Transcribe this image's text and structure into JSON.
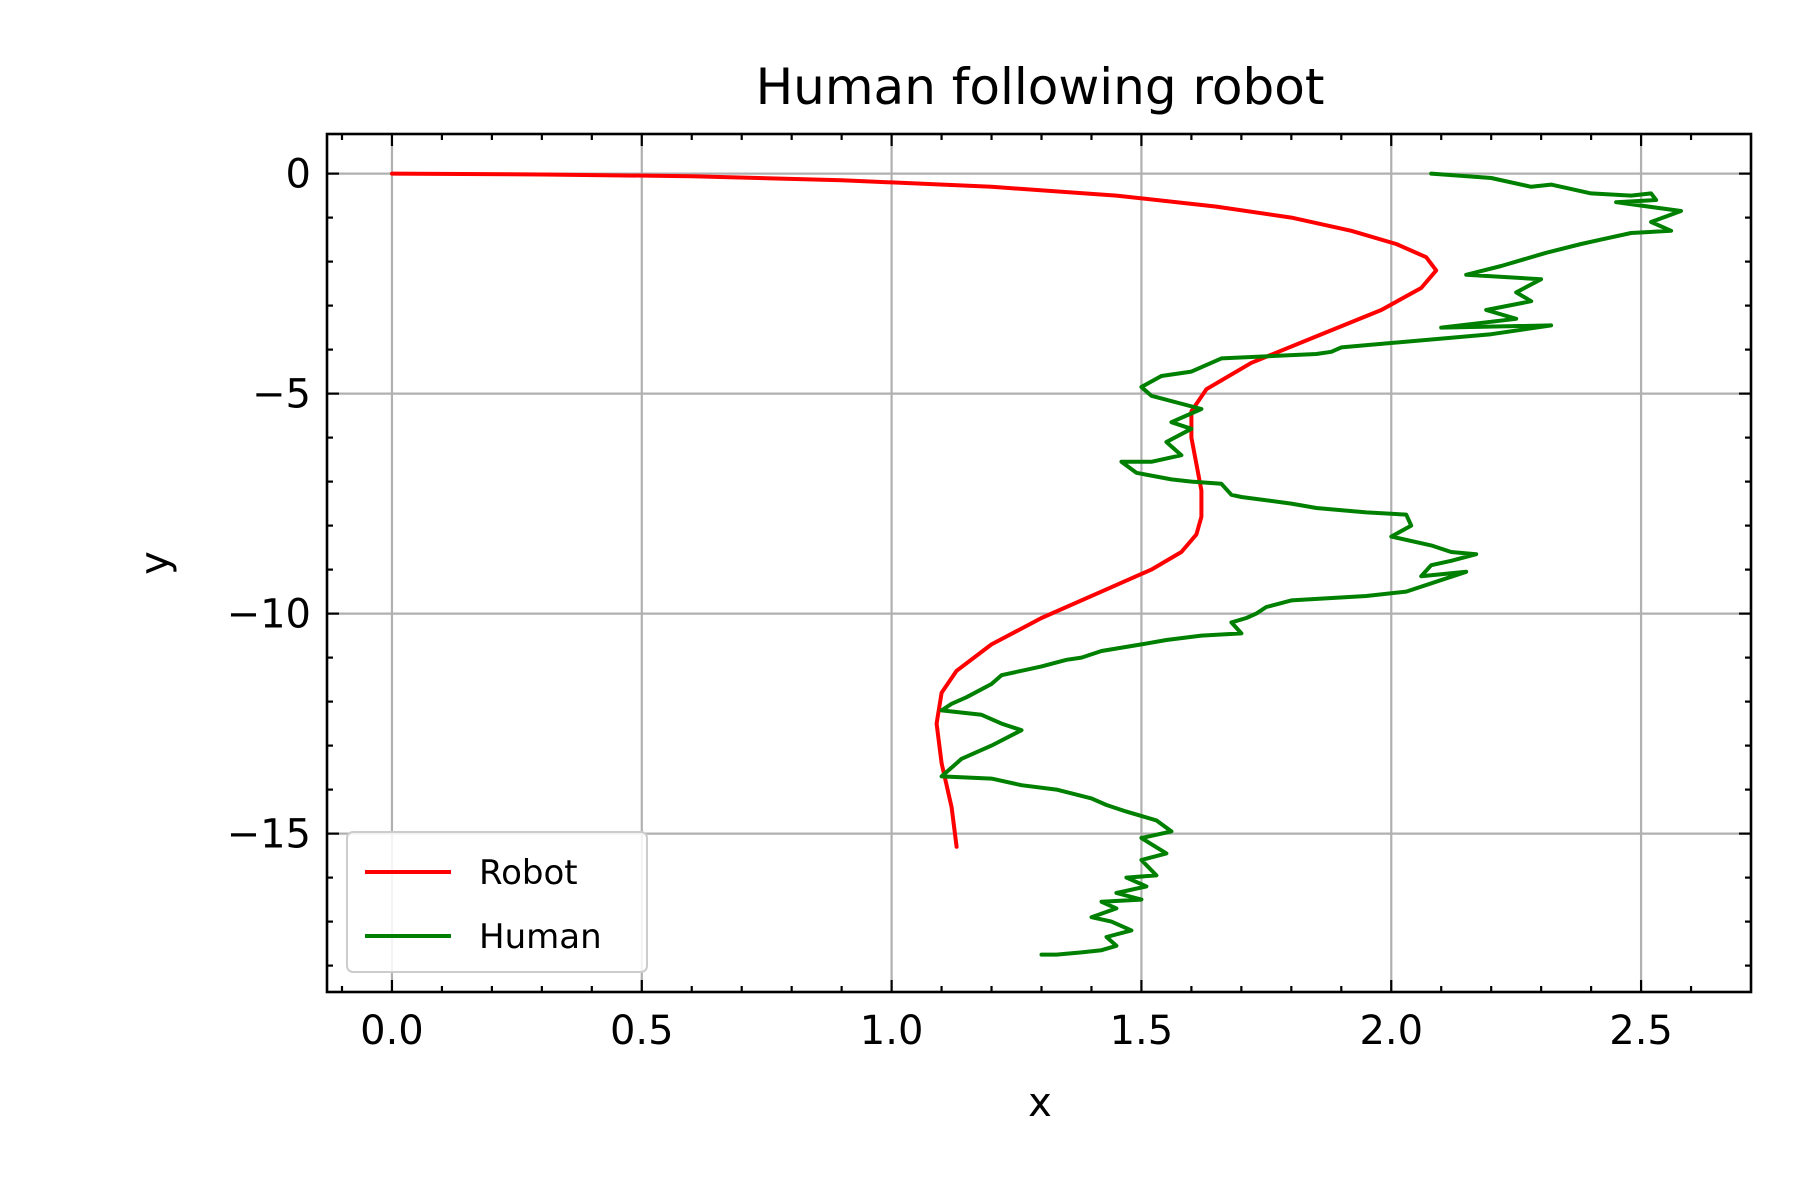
{
  "chart_data": {
    "type": "line",
    "title": "Human following robot",
    "xlabel": "x",
    "ylabel": "y",
    "xlim": [
      -0.13,
      2.72
    ],
    "ylim": [
      -18.6,
      0.9
    ],
    "grid": true,
    "legend_position": "lower-left",
    "x_ticks": [
      {
        "value": 0.0,
        "label": "0.0"
      },
      {
        "value": 0.5,
        "label": "0.5"
      },
      {
        "value": 1.0,
        "label": "1.0"
      },
      {
        "value": 1.5,
        "label": "1.5"
      },
      {
        "value": 2.0,
        "label": "2.0"
      },
      {
        "value": 2.5,
        "label": "2.5"
      }
    ],
    "y_ticks": [
      {
        "value": 0,
        "label": "0"
      },
      {
        "value": -5,
        "label": "−5"
      },
      {
        "value": -10,
        "label": "−10"
      },
      {
        "value": -15,
        "label": "−15"
      }
    ],
    "series": [
      {
        "name": "Robot",
        "color": "#ff0000",
        "x": [
          0.0,
          0.3,
          0.6,
          0.9,
          1.2,
          1.45,
          1.65,
          1.8,
          1.92,
          2.01,
          2.07,
          2.09,
          2.06,
          1.98,
          1.85,
          1.72,
          1.63,
          1.6,
          1.6,
          1.61,
          1.62,
          1.62,
          1.61,
          1.58,
          1.52,
          1.42,
          1.3,
          1.2,
          1.13,
          1.1,
          1.09,
          1.1,
          1.12,
          1.13
        ],
        "y": [
          0.0,
          -0.02,
          -0.06,
          -0.15,
          -0.3,
          -0.5,
          -0.75,
          -1.0,
          -1.3,
          -1.6,
          -1.9,
          -2.2,
          -2.6,
          -3.1,
          -3.7,
          -4.3,
          -4.9,
          -5.4,
          -6.0,
          -6.6,
          -7.2,
          -7.8,
          -8.2,
          -8.6,
          -9.0,
          -9.5,
          -10.1,
          -10.7,
          -11.3,
          -11.8,
          -12.5,
          -13.4,
          -14.4,
          -15.3
        ]
      },
      {
        "name": "Human",
        "color": "#008000",
        "x": [
          2.08,
          2.2,
          2.28,
          2.32,
          2.4,
          2.48,
          2.52,
          2.53,
          2.45,
          2.58,
          2.52,
          2.56,
          2.48,
          2.42,
          2.38,
          2.31,
          2.22,
          2.15,
          2.3,
          2.25,
          2.28,
          2.19,
          2.25,
          2.1,
          2.32,
          2.2,
          1.9,
          1.88,
          1.85,
          1.66,
          1.6,
          1.54,
          1.5,
          1.52,
          1.62,
          1.56,
          1.6,
          1.55,
          1.58,
          1.52,
          1.46,
          1.49,
          1.56,
          1.6,
          1.66,
          1.68,
          1.7,
          1.8,
          1.85,
          1.95,
          2.03,
          2.04,
          2.0,
          2.08,
          2.12,
          2.17,
          2.12,
          2.08,
          2.06,
          2.15,
          2.03,
          1.95,
          1.8,
          1.75,
          1.73,
          1.71,
          1.68,
          1.7,
          1.62,
          1.55,
          1.5,
          1.42,
          1.38,
          1.35,
          1.3,
          1.22,
          1.2,
          1.15,
          1.12,
          1.1,
          1.18,
          1.22,
          1.26,
          1.2,
          1.14,
          1.1,
          1.2,
          1.26,
          1.33,
          1.4,
          1.43,
          1.47,
          1.53,
          1.56,
          1.5,
          1.55,
          1.5,
          1.53,
          1.47,
          1.51,
          1.45,
          1.5,
          1.42,
          1.45,
          1.4,
          1.44,
          1.48,
          1.43,
          1.45,
          1.42,
          1.38,
          1.33,
          1.3
        ],
        "y": [
          0.0,
          -0.1,
          -0.3,
          -0.25,
          -0.45,
          -0.5,
          -0.45,
          -0.6,
          -0.65,
          -0.85,
          -1.1,
          -1.3,
          -1.35,
          -1.5,
          -1.6,
          -1.8,
          -2.1,
          -2.3,
          -2.4,
          -2.7,
          -2.9,
          -3.1,
          -3.3,
          -3.5,
          -3.45,
          -3.65,
          -3.95,
          -4.05,
          -4.1,
          -4.2,
          -4.5,
          -4.6,
          -4.85,
          -5.05,
          -5.35,
          -5.65,
          -5.8,
          -6.1,
          -6.4,
          -6.55,
          -6.55,
          -6.8,
          -6.95,
          -7.0,
          -7.05,
          -7.3,
          -7.35,
          -7.5,
          -7.6,
          -7.7,
          -7.75,
          -8.0,
          -8.25,
          -8.45,
          -8.6,
          -8.65,
          -8.8,
          -8.9,
          -9.15,
          -9.05,
          -9.5,
          -9.6,
          -9.7,
          -9.85,
          -10.0,
          -10.1,
          -10.2,
          -10.45,
          -10.5,
          -10.6,
          -10.7,
          -10.85,
          -11.0,
          -11.05,
          -11.2,
          -11.4,
          -11.6,
          -11.9,
          -12.05,
          -12.2,
          -12.3,
          -12.5,
          -12.65,
          -13.0,
          -13.3,
          -13.7,
          -13.75,
          -13.9,
          -14.0,
          -14.2,
          -14.35,
          -14.5,
          -14.7,
          -14.95,
          -15.1,
          -15.45,
          -15.6,
          -15.95,
          -16.0,
          -16.2,
          -16.35,
          -16.5,
          -16.55,
          -16.7,
          -16.9,
          -17.0,
          -17.2,
          -17.35,
          -17.55,
          -17.65,
          -17.7,
          -17.75,
          -17.75
        ]
      }
    ]
  }
}
